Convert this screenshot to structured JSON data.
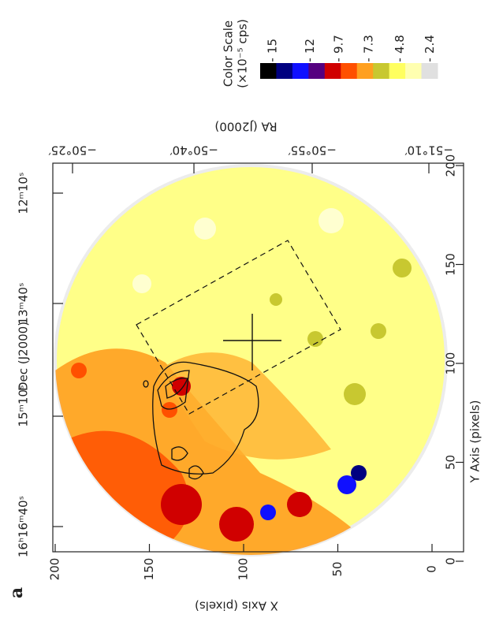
{
  "panel_label": "a",
  "chart_data": {
    "type": "image",
    "x_label": "X Axis (pixels)",
    "y_label": "Y Axis (pixels)",
    "xlim": [
      0,
      200
    ],
    "xticks": [
      0,
      50,
      100,
      150,
      200
    ],
    "ylim": [
      0,
      200
    ],
    "yticks": [
      0,
      50,
      100,
      150,
      200
    ],
    "top_axis": {
      "label": "RA (J2000)",
      "ticks": [
        "−50°25′",
        "−50°40′",
        "−50°55′",
        "−51°10′"
      ]
    },
    "left_axis": {
      "label": "Dec (J2000)",
      "ticks": [
        "16ʰ16ᵐ40ˢ",
        "15ᵐ10ˢ",
        "13ᵐ40ˢ",
        "12ᵐ10ˢ"
      ]
    },
    "colorbar": {
      "title": "Color Scale",
      "unit": "(×10⁻⁵ cps)",
      "lim": [
        16,
        1.8
      ],
      "ticks": [
        15,
        12,
        9.7,
        7.3,
        4.8,
        2.4
      ],
      "colors": [
        "#000000",
        "#000080",
        "#1010ff",
        "#550080",
        "#d00000",
        "#ff5000",
        "#ffa020",
        "#c8c830",
        "#ffff60",
        "#ffffb0",
        "#e0e0e0"
      ]
    }
  }
}
